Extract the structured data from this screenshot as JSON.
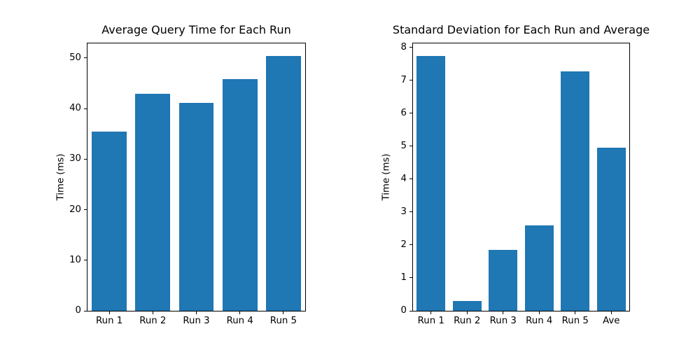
{
  "figure": {
    "background_color": "#ffffff",
    "text_color": "#000000",
    "spine_color": "#000000"
  },
  "chart_data": [
    {
      "type": "bar",
      "title": "Average Query Time for Each Run",
      "categories": [
        "Run 1",
        "Run 2",
        "Run 3",
        "Run 4",
        "Run 5"
      ],
      "values": [
        35.5,
        42.9,
        41.2,
        45.8,
        50.4
      ],
      "xlabel": "",
      "ylabel": "Time (ms)",
      "ylim": [
        0,
        52.9
      ],
      "yticks": [
        0,
        10,
        20,
        30,
        40,
        50
      ],
      "bar_color": "#1f77b4",
      "bar_width_fraction": 0.8,
      "grid": false,
      "legend": null
    },
    {
      "type": "bar",
      "title": "Standard Deviation for Each Run and Average",
      "categories": [
        "Run 1",
        "Run 2",
        "Run 3",
        "Run 4",
        "Run 5",
        "Ave"
      ],
      "values": [
        7.73,
        0.29,
        1.85,
        2.59,
        7.27,
        4.95
      ],
      "xlabel": "",
      "ylabel": "Time (ms)",
      "ylim": [
        0,
        8.12
      ],
      "yticks": [
        0,
        1,
        2,
        3,
        4,
        5,
        6,
        7,
        8
      ],
      "bar_color": "#1f77b4",
      "bar_width_fraction": 0.8,
      "grid": false,
      "legend": null
    }
  ]
}
